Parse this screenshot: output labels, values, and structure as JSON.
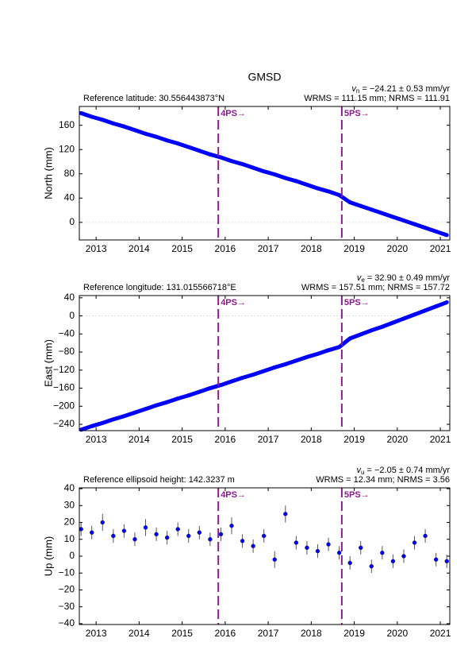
{
  "chart_data": [
    {
      "type": "scatter",
      "title": "GMSD",
      "rate_symbol": "v",
      "rate_sub": "n",
      "rate_text": " = −24.21 ± 0.53 mm/yr",
      "reference": "Reference latitude: 30.556443873°N",
      "wrms": "WRMS = 111.15 mm; NRMS = 111.91",
      "ylabel": "North (mm)",
      "xlim": [
        2012.61,
        2021.22
      ],
      "xticks": [
        2013,
        2014,
        2015,
        2016,
        2017,
        2018,
        2019,
        2020,
        2021
      ],
      "ylim": [
        -29,
        191
      ],
      "yticks": [
        0,
        40,
        80,
        120,
        160
      ],
      "zero_line": true,
      "events": [
        {
          "x": 2015.84,
          "label": "4PS→"
        },
        {
          "x": 2018.71,
          "label": "5PS→"
        }
      ],
      "event_color": "#8b1a8b",
      "series": [
        {
          "color": "#0000ff",
          "x": [
            2012.65,
            2012.9,
            2013.15,
            2013.4,
            2013.65,
            2013.9,
            2014.15,
            2014.4,
            2014.65,
            2014.9,
            2015.15,
            2015.4,
            2015.65,
            2015.9,
            2016.15,
            2016.4,
            2016.65,
            2016.9,
            2017.15,
            2017.4,
            2017.65,
            2017.9,
            2018.15,
            2018.4,
            2018.65,
            2018.9,
            2019.15,
            2019.4,
            2019.65,
            2019.9,
            2020.15,
            2020.4,
            2020.65,
            2020.9,
            2021.15
          ],
          "values": [
            180,
            174,
            169,
            163,
            158,
            152,
            146,
            141,
            135,
            130,
            124,
            118,
            112,
            107,
            101,
            96,
            90,
            84,
            79,
            73,
            68,
            62,
            56,
            51,
            45,
            33,
            27,
            21,
            15,
            9,
            3,
            -3,
            -9,
            -15,
            -21
          ]
        }
      ]
    },
    {
      "type": "scatter",
      "rate_symbol": "v",
      "rate_sub": "e",
      "rate_text": " = 32.90 ± 0.49 mm/yr",
      "reference": "Reference longitude: 131.015566718°E",
      "wrms": "WRMS = 157.51 mm; NRMS = 157.72",
      "ylabel": "East (mm)",
      "xlim": [
        2012.61,
        2021.22
      ],
      "xticks": [
        2013,
        2014,
        2015,
        2016,
        2017,
        2018,
        2019,
        2020,
        2021
      ],
      "ylim": [
        -254,
        45
      ],
      "yticks": [
        40,
        0,
        {
          "value": -40,
          "label": "−40"
        },
        {
          "value": -80,
          "label": "−80"
        },
        {
          "value": -120,
          "label": "−120"
        },
        {
          "value": -160,
          "label": "−160"
        },
        {
          "value": -200,
          "label": "−200"
        },
        {
          "value": -240,
          "label": "−240"
        }
      ],
      "zero_line": true,
      "events": [
        {
          "x": 2015.84,
          "label": "4PS→"
        },
        {
          "x": 2018.71,
          "label": "5PS→"
        }
      ],
      "event_color": "#8b1a8b",
      "series": [
        {
          "color": "#0000ff",
          "x": [
            2012.65,
            2012.9,
            2013.15,
            2013.4,
            2013.65,
            2013.9,
            2014.15,
            2014.4,
            2014.65,
            2014.9,
            2015.15,
            2015.4,
            2015.65,
            2015.9,
            2016.15,
            2016.4,
            2016.65,
            2016.9,
            2017.15,
            2017.4,
            2017.65,
            2017.9,
            2018.15,
            2018.4,
            2018.65,
            2018.9,
            2019.15,
            2019.4,
            2019.65,
            2019.9,
            2020.15,
            2020.4,
            2020.65,
            2020.9,
            2021.15
          ],
          "values": [
            -252,
            -244,
            -237,
            -229,
            -222,
            -214,
            -206,
            -198,
            -191,
            -183,
            -176,
            -168,
            -160,
            -153,
            -145,
            -137,
            -130,
            -122,
            -114,
            -107,
            -99,
            -91,
            -84,
            -76,
            -69,
            -50,
            -41,
            -32,
            -24,
            -15,
            -6,
            3,
            12,
            21,
            30
          ]
        }
      ]
    },
    {
      "type": "errorbar",
      "rate_symbol": "v",
      "rate_sub": "u",
      "rate_text": " = −2.05 ± 0.74 mm/yr",
      "reference": "Reference ellipsoid height: 142.3237 m",
      "wrms": "WRMS = 12.34 mm; NRMS = 3.56",
      "ylabel": "Up (mm)",
      "xlim": [
        2012.61,
        2021.22
      ],
      "xticks": [
        2013,
        2014,
        2015,
        2016,
        2017,
        2018,
        2019,
        2020,
        2021
      ],
      "ylim": [
        -40.5,
        40.5
      ],
      "yticks": [
        40,
        30,
        20,
        10,
        0,
        {
          "value": -10,
          "label": "−10"
        },
        {
          "value": -20,
          "label": "−20"
        },
        {
          "value": -30,
          "label": "−30"
        },
        {
          "value": -40,
          "label": "−40"
        }
      ],
      "zero_line": false,
      "events": [
        {
          "x": 2015.84,
          "label": "4PS→"
        },
        {
          "x": 2018.71,
          "label": "5PS→"
        }
      ],
      "event_color": "#8b1a8b",
      "series": [
        {
          "color": "#0000ff",
          "error_color": "#555555",
          "x": [
            2012.65,
            2012.9,
            2013.15,
            2013.4,
            2013.65,
            2013.9,
            2014.15,
            2014.4,
            2014.65,
            2014.9,
            2015.15,
            2015.4,
            2015.65,
            2015.9,
            2016.15,
            2016.4,
            2016.65,
            2016.9,
            2017.15,
            2017.4,
            2017.65,
            2017.9,
            2018.15,
            2018.4,
            2018.65,
            2018.9,
            2019.15,
            2019.4,
            2019.65,
            2019.9,
            2020.15,
            2020.4,
            2020.65,
            2020.9,
            2021.15
          ],
          "values": [
            16,
            14,
            20,
            12,
            15,
            10,
            17,
            13,
            11,
            16,
            12,
            14,
            10,
            13,
            18,
            9,
            6,
            12,
            -2,
            25,
            8,
            5,
            3,
            7,
            2,
            -4,
            5,
            -6,
            2,
            -3,
            0,
            8,
            12,
            -2,
            -3
          ],
          "errors": [
            4,
            4,
            5,
            4,
            4,
            4,
            5,
            4,
            4,
            4,
            4,
            4,
            4,
            4,
            5,
            4,
            4,
            4,
            5,
            5,
            4,
            4,
            4,
            4,
            4,
            4,
            4,
            4,
            4,
            4,
            4,
            4,
            4,
            4,
            4
          ]
        }
      ]
    }
  ]
}
